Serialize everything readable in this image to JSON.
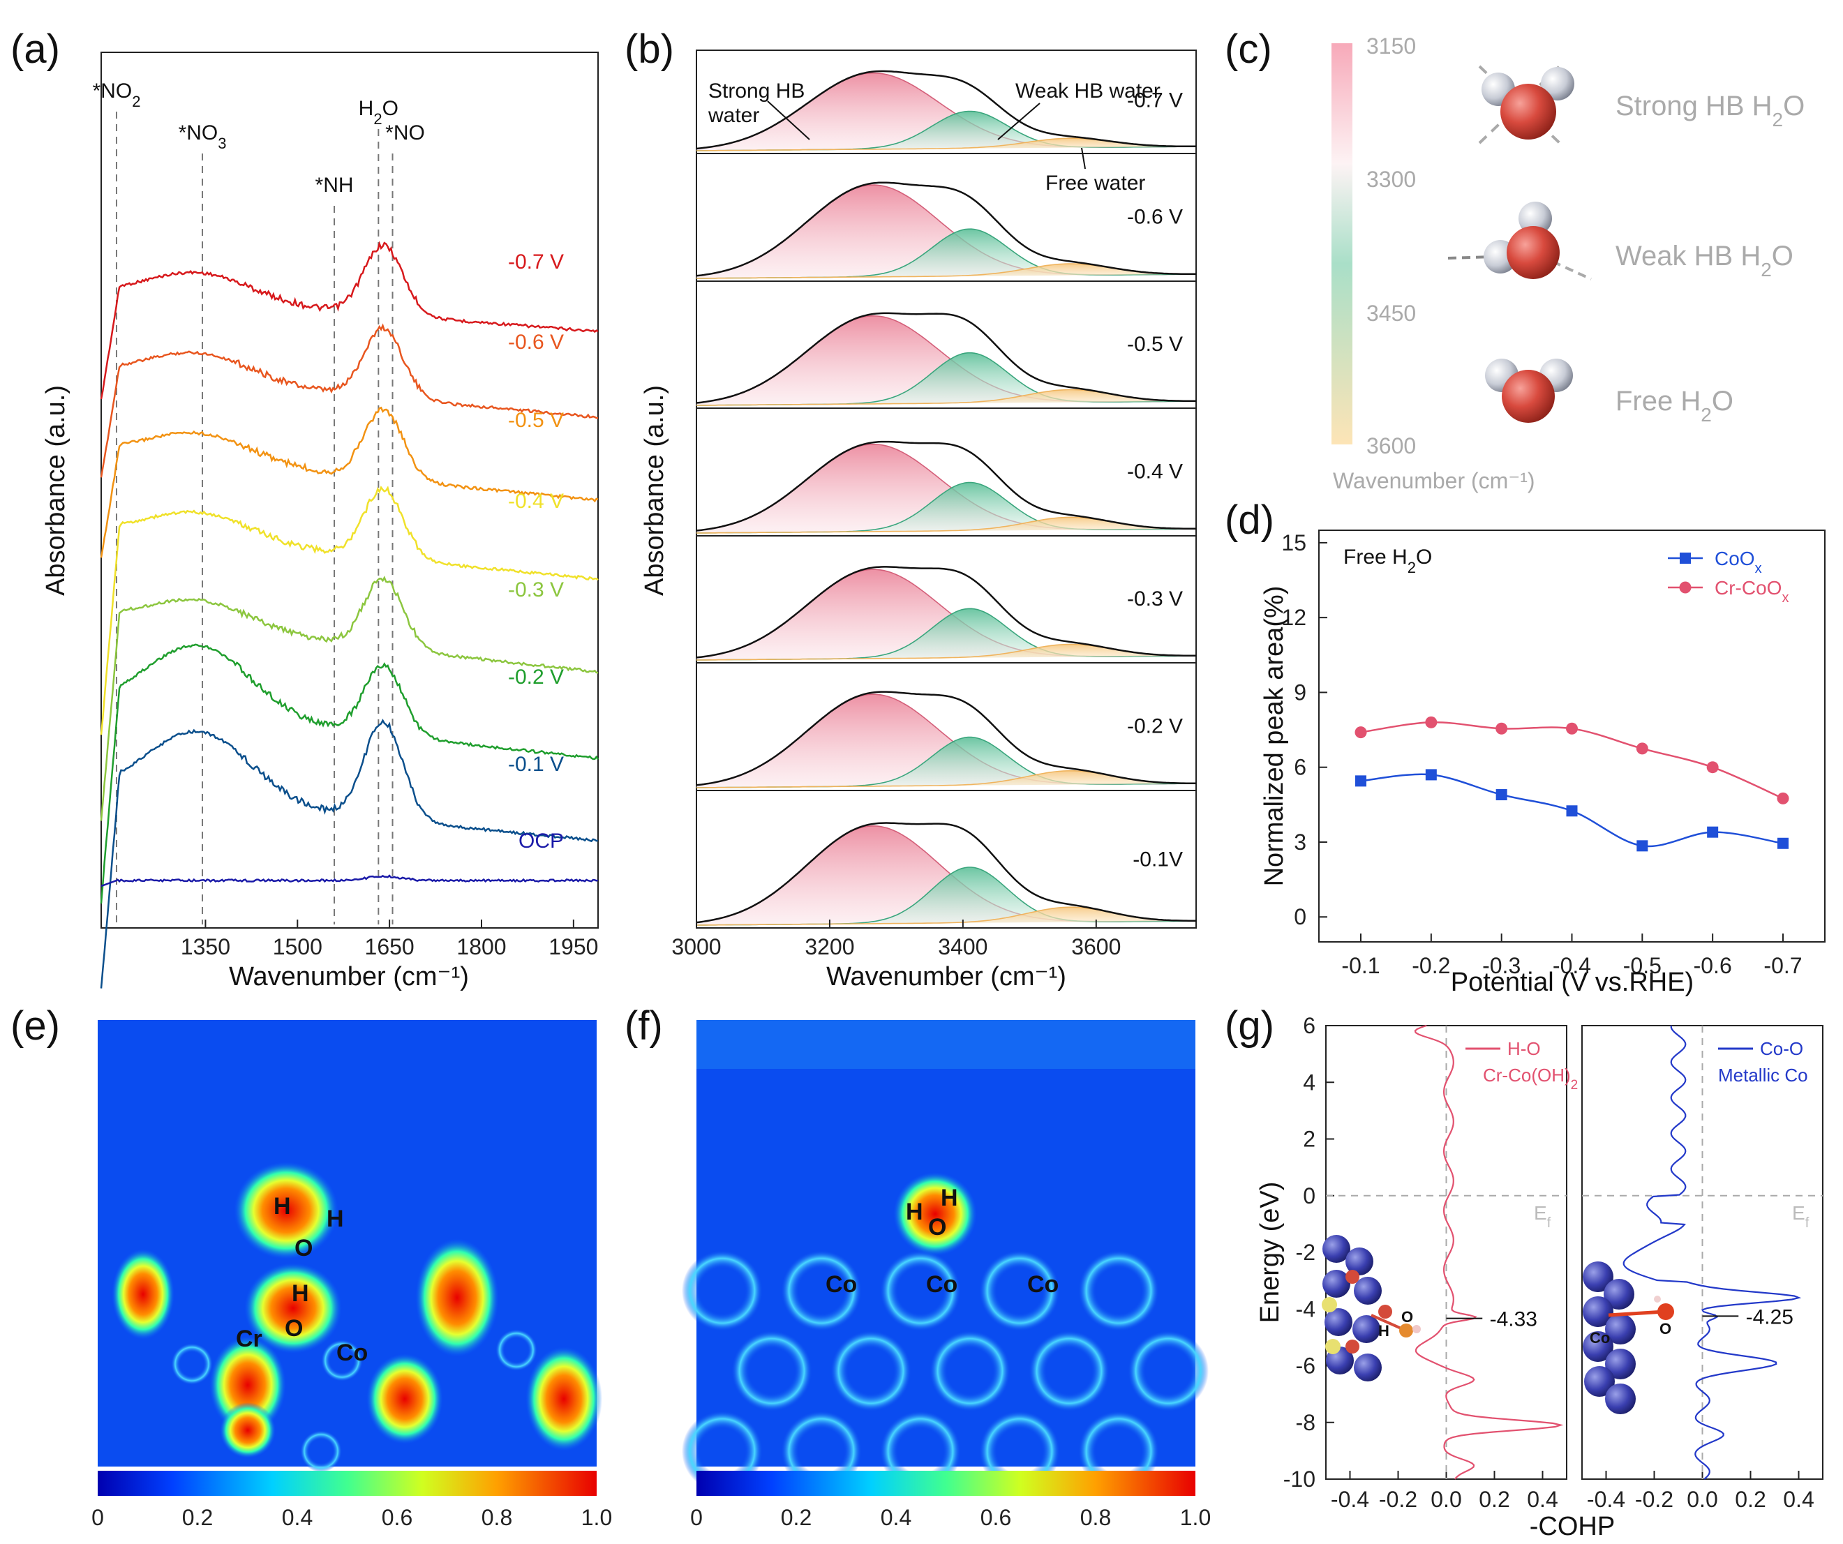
{
  "panels": {
    "a": "(a)",
    "b": "(b)",
    "c": "(c)",
    "d": "(d)",
    "e": "(e)",
    "f": "(f)",
    "g": "(g)"
  },
  "chart_data": [
    {
      "id": "a",
      "type": "line",
      "xlabel": "Wavenumber (cm⁻¹)",
      "ylabel": "Absorbance (a.u.)",
      "xlim": [
        1180,
        1990
      ],
      "xticks": [
        1350,
        1500,
        1650,
        1800,
        1950
      ],
      "yticks": false,
      "markers": [
        {
          "label": "*NO",
          "sub": "2",
          "x": 1205
        },
        {
          "label": "*NO",
          "sub": "3",
          "x": 1345
        },
        {
          "label": "*NH",
          "sub": "",
          "x": 1560
        },
        {
          "label": "H",
          "sub": "2",
          "label2": "O",
          "x": 1632
        },
        {
          "label": "*NO",
          "sub": "",
          "x": 1655
        }
      ],
      "series": [
        {
          "name": "-0.7 V",
          "color": "#d7191c"
        },
        {
          "name": "-0.6 V",
          "color": "#e8561f"
        },
        {
          "name": "-0.5 V",
          "color": "#f29212"
        },
        {
          "name": "-0.4 V",
          "color": "#f0e12a"
        },
        {
          "name": "-0.3 V",
          "color": "#8cc63f"
        },
        {
          "name": "-0.2 V",
          "color": "#1f9e2d"
        },
        {
          "name": "-0.1 V",
          "color": "#0b4f8c"
        },
        {
          "name": "OCP",
          "color": "#1a1aa8"
        }
      ]
    },
    {
      "id": "b",
      "type": "area",
      "xlabel": "Wavenumber (cm⁻¹)",
      "ylabel": "Absorbance (a.u.)",
      "xlim": [
        3000,
        3750
      ],
      "xticks": [
        3000,
        3200,
        3400,
        3600
      ],
      "annotations": [
        "Strong HB",
        "water",
        "Weak HB water",
        "Free water"
      ],
      "components": {
        "strong_center": 3265,
        "weak_center": 3410,
        "free_center": 3560
      },
      "rows": [
        {
          "label": "-0.7 V",
          "strong": 0.82,
          "weak": 0.4,
          "free": 0.1
        },
        {
          "label": "-0.6 V",
          "strong": 0.8,
          "weak": 0.41,
          "free": 0.1
        },
        {
          "label": "-0.5 V",
          "strong": 0.77,
          "weak": 0.44,
          "free": 0.11
        },
        {
          "label": "-0.4 V",
          "strong": 0.76,
          "weak": 0.42,
          "free": 0.11
        },
        {
          "label": "-0.3 V",
          "strong": 0.78,
          "weak": 0.43,
          "free": 0.11
        },
        {
          "label": "-0.2 V",
          "strong": 0.8,
          "weak": 0.42,
          "free": 0.12
        },
        {
          "label": "-0.1V",
          "strong": 0.79,
          "weak": 0.45,
          "free": 0.12
        }
      ]
    },
    {
      "id": "c",
      "type": "legend",
      "colorbar_label": "Wavenumber (cm⁻¹)",
      "colorbar_ticks": [
        "3150",
        "3300",
        "3450",
        "3600"
      ],
      "colors": [
        "#f4a6b6",
        "#ffffff",
        "#a8dcc5",
        "#fde4b4"
      ],
      "items": [
        {
          "label": "Strong HB H",
          "sub": "2",
          "tail": "O"
        },
        {
          "label": "Weak HB H",
          "sub": "2",
          "tail": "O"
        },
        {
          "label": "Free H",
          "sub": "2",
          "tail": "O"
        }
      ]
    },
    {
      "id": "d",
      "type": "line",
      "title": "Free H₂O",
      "xlabel": "Potential (V vs.RHE)",
      "ylabel": "Normalized peak area(%)",
      "categories": [
        "-0.1",
        "-0.2",
        "-0.3",
        "-0.4",
        "-0.5",
        "-0.6",
        "-0.7"
      ],
      "ylim": [
        -1,
        15.5
      ],
      "yticks": [
        0,
        3,
        6,
        9,
        12,
        15
      ],
      "series": [
        {
          "name": "CoO",
          "sub": "x",
          "color": "#1f4fd8",
          "marker": "square",
          "values": [
            5.45,
            5.7,
            4.9,
            4.25,
            2.85,
            3.4,
            2.95
          ]
        },
        {
          "name": "Cr-CoO",
          "sub": "x",
          "color": "#e2516f",
          "marker": "circle",
          "values": [
            7.4,
            7.8,
            7.55,
            7.55,
            6.75,
            6.0,
            4.75
          ]
        }
      ]
    },
    {
      "id": "e",
      "type": "heatmap",
      "colorbar_ticks": [
        "0",
        "0.2",
        "0.4",
        "0.6",
        "0.8",
        "1.0"
      ],
      "atom_labels": [
        "H",
        "H",
        "O",
        "H",
        "O",
        "Cr",
        "Co"
      ]
    },
    {
      "id": "f",
      "type": "heatmap",
      "colorbar_ticks": [
        "0",
        "0.2",
        "0.4",
        "0.6",
        "0.8",
        "1.0"
      ],
      "atom_labels": [
        "H",
        "H",
        "O",
        "Co",
        "Co",
        "Co"
      ]
    },
    {
      "id": "g",
      "type": "line",
      "xlabel": "-COHP",
      "ylabel": "Energy (eV)",
      "ylim": [
        -10,
        6
      ],
      "yticks": [
        6,
        4,
        2,
        0,
        -2,
        -4,
        -6,
        -8,
        -10
      ],
      "xticks": [
        "-0.4",
        "-0.2",
        "0.0",
        "0.2",
        "0.4"
      ],
      "fermi_label": "E",
      "fermi_sub": "f",
      "panels": [
        {
          "series": "H-O",
          "system": "Cr-Co(OH)",
          "system_sub": "2",
          "color": "#e2516f",
          "center_label": "-4.33",
          "atoms": [
            "O",
            "H"
          ]
        },
        {
          "series": "Co-O",
          "system": "Metallic Co",
          "system_sub": "",
          "color": "#2339c9",
          "center_label": "-4.25",
          "atoms": [
            "Co",
            "O"
          ]
        }
      ]
    }
  ]
}
